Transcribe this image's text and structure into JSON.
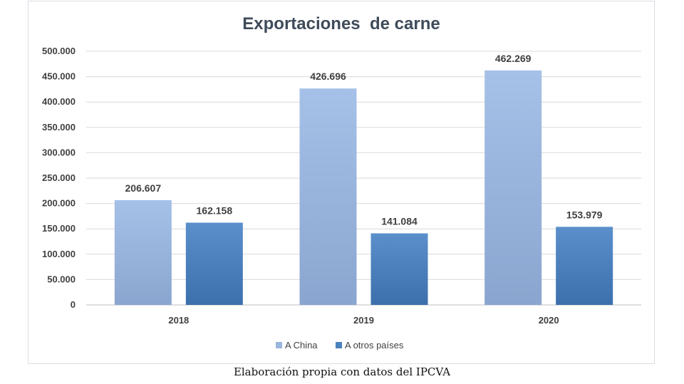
{
  "chart_data": {
    "type": "bar",
    "title": "Exportaciones  de carne",
    "categories": [
      "2018",
      "2019",
      "2020"
    ],
    "series": [
      {
        "name": "A China",
        "values": [
          206607,
          426696,
          462269
        ],
        "color": "#9ab5de",
        "labels": [
          "206.607",
          "426.696",
          "462.269"
        ]
      },
      {
        "name": "A otros países",
        "values": [
          162158,
          141084,
          153979
        ],
        "color": "#4a81bd",
        "labels": [
          "162.158",
          "141.084",
          "153.979"
        ]
      }
    ],
    "yticks": [
      "0",
      "50.000",
      "100.000",
      "150.000",
      "200.000",
      "250.000",
      "300.000",
      "350.000",
      "400.000",
      "450.000",
      "500.000"
    ],
    "ylim": [
      0,
      500000
    ],
    "grid": true,
    "legend_position": "bottom"
  },
  "caption": "Elaboración propia con datos del IPCVA",
  "colors": {
    "title": "#3f4b5a",
    "text": "#404040",
    "grid": "#d9d9d9"
  }
}
